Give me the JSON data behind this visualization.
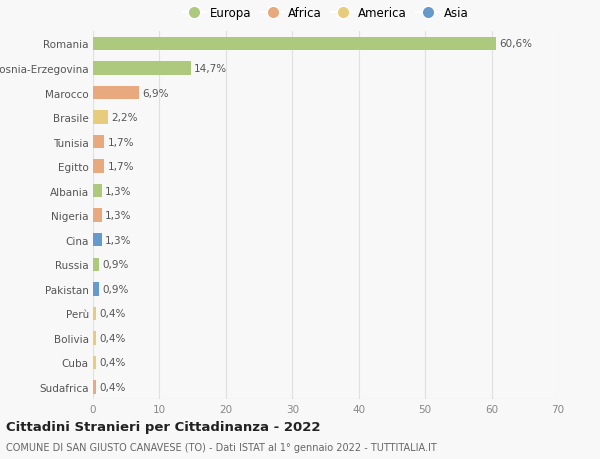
{
  "categories": [
    "Romania",
    "Bosnia-Erzegovina",
    "Marocco",
    "Brasile",
    "Tunisia",
    "Egitto",
    "Albania",
    "Nigeria",
    "Cina",
    "Russia",
    "Pakistan",
    "Perù",
    "Bolivia",
    "Cuba",
    "Sudafrica"
  ],
  "values": [
    60.6,
    14.7,
    6.9,
    2.2,
    1.7,
    1.7,
    1.3,
    1.3,
    1.3,
    0.9,
    0.9,
    0.4,
    0.4,
    0.4,
    0.4
  ],
  "labels": [
    "60,6%",
    "14,7%",
    "6,9%",
    "2,2%",
    "1,7%",
    "1,7%",
    "1,3%",
    "1,3%",
    "1,3%",
    "0,9%",
    "0,9%",
    "0,4%",
    "0,4%",
    "0,4%",
    "0,4%"
  ],
  "regions": [
    "Europa",
    "Europa",
    "Africa",
    "America",
    "Africa",
    "Africa",
    "Europa",
    "Africa",
    "Asia",
    "Europa",
    "Asia",
    "America",
    "America",
    "America",
    "Africa"
  ],
  "region_colors": {
    "Europa": "#adc97e",
    "Africa": "#e8a97e",
    "America": "#e8cc7e",
    "Asia": "#6699cc"
  },
  "legend_labels": [
    "Europa",
    "Africa",
    "America",
    "Asia"
  ],
  "legend_colors": [
    "#adc97e",
    "#e8a97e",
    "#e8cc7e",
    "#6699cc"
  ],
  "xlim": [
    0,
    70
  ],
  "xticks": [
    0,
    10,
    20,
    30,
    40,
    50,
    60,
    70
  ],
  "title": "Cittadini Stranieri per Cittadinanza - 2022",
  "subtitle": "COMUNE DI SAN GIUSTO CANAVESE (TO) - Dati ISTAT al 1° gennaio 2022 - TUTTITALIA.IT",
  "background_color": "#f8f8f8",
  "grid_color": "#e0e0e0",
  "bar_height": 0.55,
  "label_fontsize": 7.5,
  "ytick_fontsize": 7.5,
  "xtick_fontsize": 7.5,
  "title_fontsize": 9.5,
  "subtitle_fontsize": 7.0
}
